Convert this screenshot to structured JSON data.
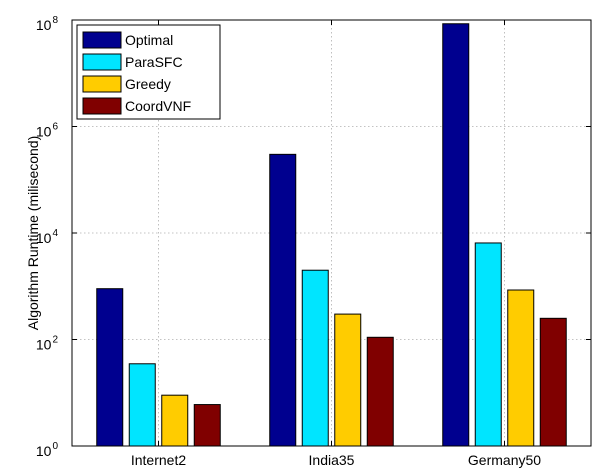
{
  "chart_data": {
    "type": "bar",
    "categories": [
      "Internet2",
      "India35",
      "Germany50"
    ],
    "series": [
      {
        "name": "Optimal",
        "color": "#00008f",
        "values": [
          900,
          300000,
          85000000
        ]
      },
      {
        "name": "ParaSFC",
        "color": "#00e5ff",
        "values": [
          35,
          2000,
          6500
        ]
      },
      {
        "name": "Greedy",
        "color": "#ffcc00",
        "values": [
          9,
          300,
          850
        ]
      },
      {
        "name": "CoordVNF",
        "color": "#800000",
        "values": [
          6,
          110,
          250
        ]
      }
    ],
    "xlabel": "",
    "ylabel": "Algorithm Runtime (milisecond)",
    "yscale": "log",
    "ylim": [
      1,
      100000000
    ],
    "yticks": [
      {
        "base": "10",
        "exp": "0",
        "value": 1
      },
      {
        "base": "10",
        "exp": "2",
        "value": 100
      },
      {
        "base": "10",
        "exp": "4",
        "value": 10000
      },
      {
        "base": "10",
        "exp": "6",
        "value": 1000000
      },
      {
        "base": "10",
        "exp": "8",
        "value": 100000000
      }
    ],
    "grid": true,
    "legend": "top-left"
  }
}
